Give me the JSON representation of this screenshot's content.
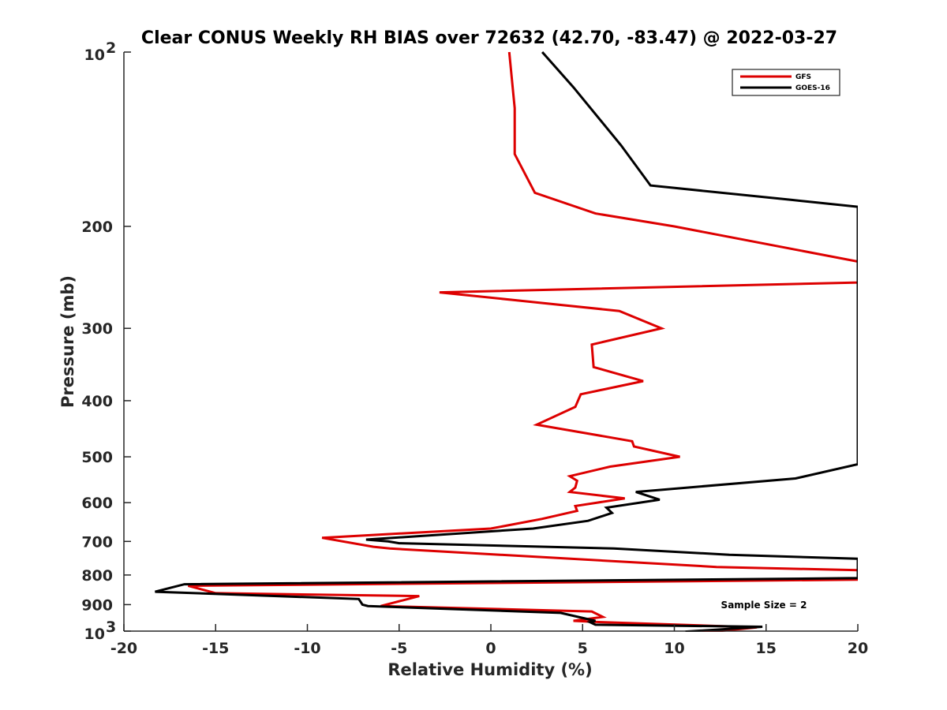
{
  "chart_data": {
    "type": "line",
    "title": "Clear CONUS Weekly RH BIAS over 72632 (42.70, -83.47) @ 2022-03-27",
    "xlabel": "Relative Humidity (%)",
    "ylabel": "Pressure (mb)",
    "xlim": [
      -20,
      20
    ],
    "ylim": [
      100,
      1000
    ],
    "y_scale": "log",
    "y_reversed": true,
    "x_ticks": [
      {
        "value": -20,
        "label": "-20"
      },
      {
        "value": -15,
        "label": "-15"
      },
      {
        "value": -10,
        "label": "-10"
      },
      {
        "value": -5,
        "label": "-5"
      },
      {
        "value": 0,
        "label": "0"
      },
      {
        "value": 5,
        "label": "5"
      },
      {
        "value": 10,
        "label": "10"
      },
      {
        "value": 15,
        "label": "15"
      },
      {
        "value": 20,
        "label": "20"
      }
    ],
    "y_ticks": [
      {
        "value": 100,
        "label": "10",
        "sup": "2"
      },
      {
        "value": 200,
        "label": "200"
      },
      {
        "value": 300,
        "label": "300"
      },
      {
        "value": 400,
        "label": "400"
      },
      {
        "value": 500,
        "label": "500"
      },
      {
        "value": 600,
        "label": "600"
      },
      {
        "value": 700,
        "label": "700"
      },
      {
        "value": 800,
        "label": "800"
      },
      {
        "value": 900,
        "label": "900"
      },
      {
        "value": 1000,
        "label": "10",
        "sup": "3"
      }
    ],
    "grid": false,
    "legend": "top-right",
    "annotation": "Sample Size = 2",
    "series": [
      {
        "name": "GFS",
        "color": "#dd0000",
        "points": [
          [
            1.0,
            100
          ],
          [
            1.3,
            125
          ],
          [
            1.3,
            150
          ],
          [
            2.4,
            175
          ],
          [
            5.7,
            190
          ],
          [
            10.0,
            200
          ],
          [
            20.0,
            230
          ],
          [
            20.0,
            250
          ],
          [
            -2.8,
            260
          ],
          [
            7.0,
            280
          ],
          [
            9.3,
            300
          ],
          [
            5.5,
            320
          ],
          [
            5.6,
            350
          ],
          [
            8.3,
            370
          ],
          [
            4.9,
            390
          ],
          [
            4.6,
            410
          ],
          [
            2.5,
            440
          ],
          [
            7.7,
            470
          ],
          [
            7.8,
            480
          ],
          [
            10.3,
            500
          ],
          [
            6.5,
            520
          ],
          [
            4.3,
            540
          ],
          [
            4.7,
            550
          ],
          [
            4.6,
            565
          ],
          [
            4.3,
            575
          ],
          [
            7.3,
            590
          ],
          [
            4.6,
            608
          ],
          [
            4.7,
            620
          ],
          [
            2.8,
            640
          ],
          [
            0.0,
            665
          ],
          [
            -9.2,
            690
          ],
          [
            -6.4,
            715
          ],
          [
            -5.5,
            720
          ],
          [
            12.3,
            775
          ],
          [
            20.0,
            785
          ],
          [
            20.0,
            815
          ],
          [
            -16.5,
            835
          ],
          [
            -15.0,
            860
          ],
          [
            -3.9,
            870
          ],
          [
            -6.0,
            905
          ],
          [
            5.5,
            925
          ],
          [
            6.1,
            945
          ],
          [
            4.5,
            960
          ],
          [
            6.0,
            965
          ],
          [
            14.5,
            985
          ],
          [
            11.0,
            1010
          ]
        ]
      },
      {
        "name": "GOES-16",
        "color": "#000000",
        "points": [
          [
            2.8,
            100
          ],
          [
            4.5,
            115
          ],
          [
            7.1,
            145
          ],
          [
            8.7,
            170
          ],
          [
            16.4,
            180
          ],
          [
            20.0,
            185
          ],
          [
            20.0,
            515
          ],
          [
            16.6,
            545
          ],
          [
            7.9,
            575
          ],
          [
            9.2,
            593
          ],
          [
            6.3,
            612
          ],
          [
            6.6,
            625
          ],
          [
            5.3,
            645
          ],
          [
            2.3,
            665
          ],
          [
            -6.8,
            695
          ],
          [
            -5.6,
            700
          ],
          [
            -5.0,
            705
          ],
          [
            6.7,
            720
          ],
          [
            13.0,
            738
          ],
          [
            20.0,
            750
          ],
          [
            20.0,
            810
          ],
          [
            -16.7,
            830
          ],
          [
            -18.3,
            855
          ],
          [
            -7.2,
            880
          ],
          [
            -7.0,
            900
          ],
          [
            -6.7,
            905
          ],
          [
            3.8,
            930
          ],
          [
            5.7,
            960
          ],
          [
            5.4,
            965
          ],
          [
            5.7,
            975
          ],
          [
            14.8,
            983
          ],
          [
            10.6,
            1002
          ]
        ]
      }
    ]
  }
}
